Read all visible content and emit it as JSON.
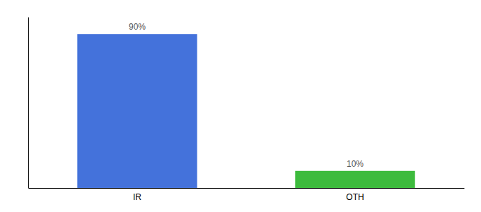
{
  "chart_data": {
    "type": "bar",
    "categories": [
      "IR",
      "OTH"
    ],
    "values": [
      90,
      10
    ],
    "colors": [
      "#4472db",
      "#3dbb3d"
    ],
    "ylim": [
      0,
      100
    ],
    "grid": false,
    "data_labels": true,
    "value_labels": [
      "90%",
      "10%"
    ],
    "tick_labels": "x"
  }
}
